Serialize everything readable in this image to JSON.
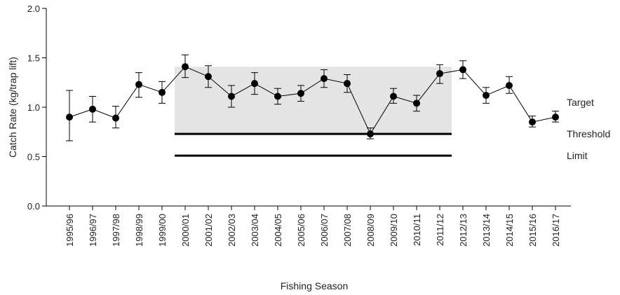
{
  "chart_data": {
    "type": "line",
    "title": "",
    "xlabel": "Fishing Season",
    "ylabel": "Catch Rate (kg/trap lift)",
    "ylim": [
      0,
      2.0
    ],
    "yticks": [
      "0.0",
      "0.5",
      "1.0",
      "1.5",
      "2.0"
    ],
    "grid": false,
    "categories": [
      "1995/96",
      "1996/97",
      "1997/98",
      "1998/99",
      "1999/00",
      "2000/01",
      "2001/02",
      "2002/03",
      "2003/04",
      "2004/05",
      "2005/06",
      "2006/07",
      "2007/08",
      "2008/09",
      "2009/10",
      "2010/11",
      "2011/12",
      "2012/13",
      "2013/14",
      "2014/15",
      "2015/16",
      "2016/17"
    ],
    "series": [
      {
        "values": [
          0.9,
          0.98,
          0.89,
          1.23,
          1.15,
          1.41,
          1.31,
          1.11,
          1.24,
          1.11,
          1.14,
          1.29,
          1.24,
          0.73,
          1.11,
          1.04,
          1.34,
          1.38,
          1.12,
          1.22,
          0.85,
          0.9
        ],
        "lower": [
          0.66,
          0.85,
          0.79,
          1.1,
          1.04,
          1.3,
          1.2,
          1.0,
          1.13,
          1.03,
          1.06,
          1.2,
          1.15,
          0.68,
          1.04,
          0.96,
          1.24,
          1.29,
          1.04,
          1.14,
          0.8,
          0.85
        ],
        "upper": [
          1.17,
          1.11,
          1.01,
          1.35,
          1.26,
          1.53,
          1.42,
          1.22,
          1.35,
          1.19,
          1.22,
          1.38,
          1.33,
          0.79,
          1.19,
          1.12,
          1.43,
          1.47,
          1.2,
          1.31,
          0.91,
          0.96
        ]
      }
    ],
    "reference_period": {
      "start": "2000/01",
      "end": "2011/12",
      "upper": 1.41,
      "lower": 0.73
    },
    "reference_lines": [
      {
        "label": "Target",
        "value": 1.05
      },
      {
        "label": "Threshold",
        "value": 0.73
      },
      {
        "label": "Limit",
        "value": 0.51
      }
    ],
    "colors": {
      "points": "#000000",
      "band": "#e4e4e4",
      "lines": "#000000"
    }
  }
}
